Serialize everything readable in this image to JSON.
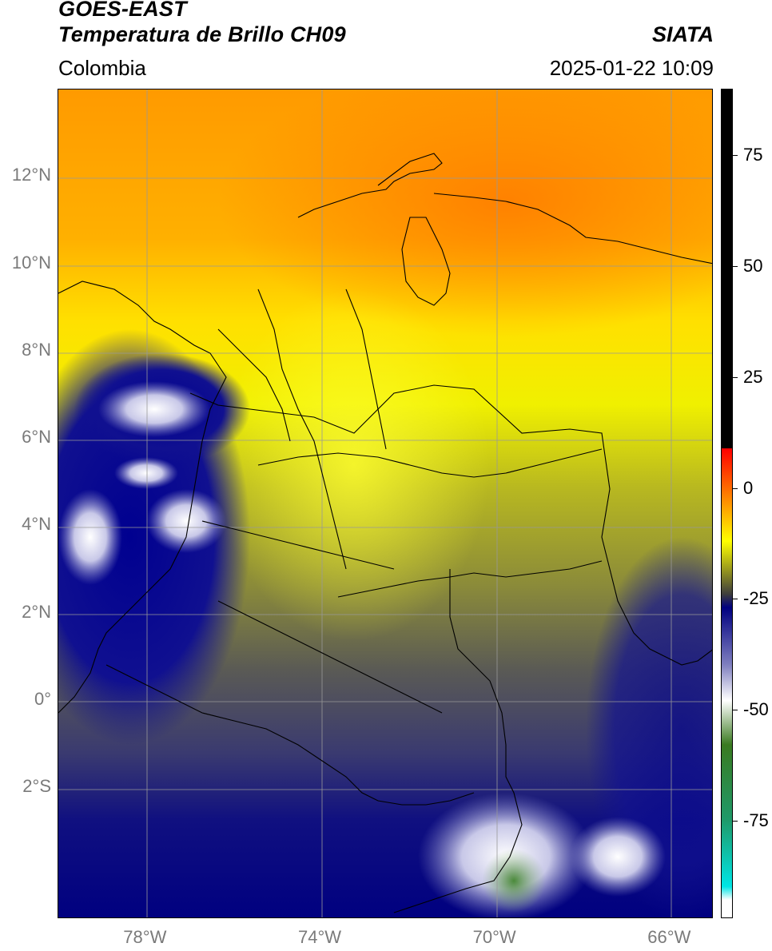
{
  "header": {
    "satellite": "GOES-EAST",
    "product": "Temperatura de Brillo CH09",
    "region": "Colombia",
    "agency": "SIATA",
    "datetime": "2025-01-22 10:09"
  },
  "map": {
    "type": "satellite brightness temperature",
    "lat_labels": [
      "12°N",
      "10°N",
      "8°N",
      "6°N",
      "4°N",
      "2°N",
      "0°",
      "2°S"
    ],
    "lon_labels": [
      "78°W",
      "74°W",
      "70°W",
      "66°W"
    ],
    "lat_range": [
      -5,
      14
    ],
    "lon_range": [
      -80,
      -65
    ],
    "grid": true
  },
  "colorbar": {
    "tick_labels": [
      "75",
      "50",
      "25",
      "0",
      "-25",
      "-50",
      "-75"
    ],
    "ticks": [
      75,
      50,
      25,
      0,
      -25,
      -50,
      -75
    ],
    "range": [
      -97,
      90
    ],
    "stops": [
      {
        "value": 90,
        "color": "#000000"
      },
      {
        "value": 9,
        "color": "#000000"
      },
      {
        "value": 8.9,
        "color": "#ff0000"
      },
      {
        "value": 0,
        "color": "#ff6a00"
      },
      {
        "value": -12,
        "color": "#ffff00"
      },
      {
        "value": -19,
        "color": "#8f8f20"
      },
      {
        "value": -24,
        "color": "#3d3d3d"
      },
      {
        "value": -27,
        "color": "#000080"
      },
      {
        "value": -40,
        "color": "#8080c0"
      },
      {
        "value": -48,
        "color": "#ffffff"
      },
      {
        "value": -58,
        "color": "#3a7a20"
      },
      {
        "value": -75,
        "color": "#1f9a6a"
      },
      {
        "value": -90,
        "color": "#00e5e5"
      },
      {
        "value": -93,
        "color": "#ffffff"
      },
      {
        "value": -97,
        "color": "#ffffff"
      }
    ]
  }
}
